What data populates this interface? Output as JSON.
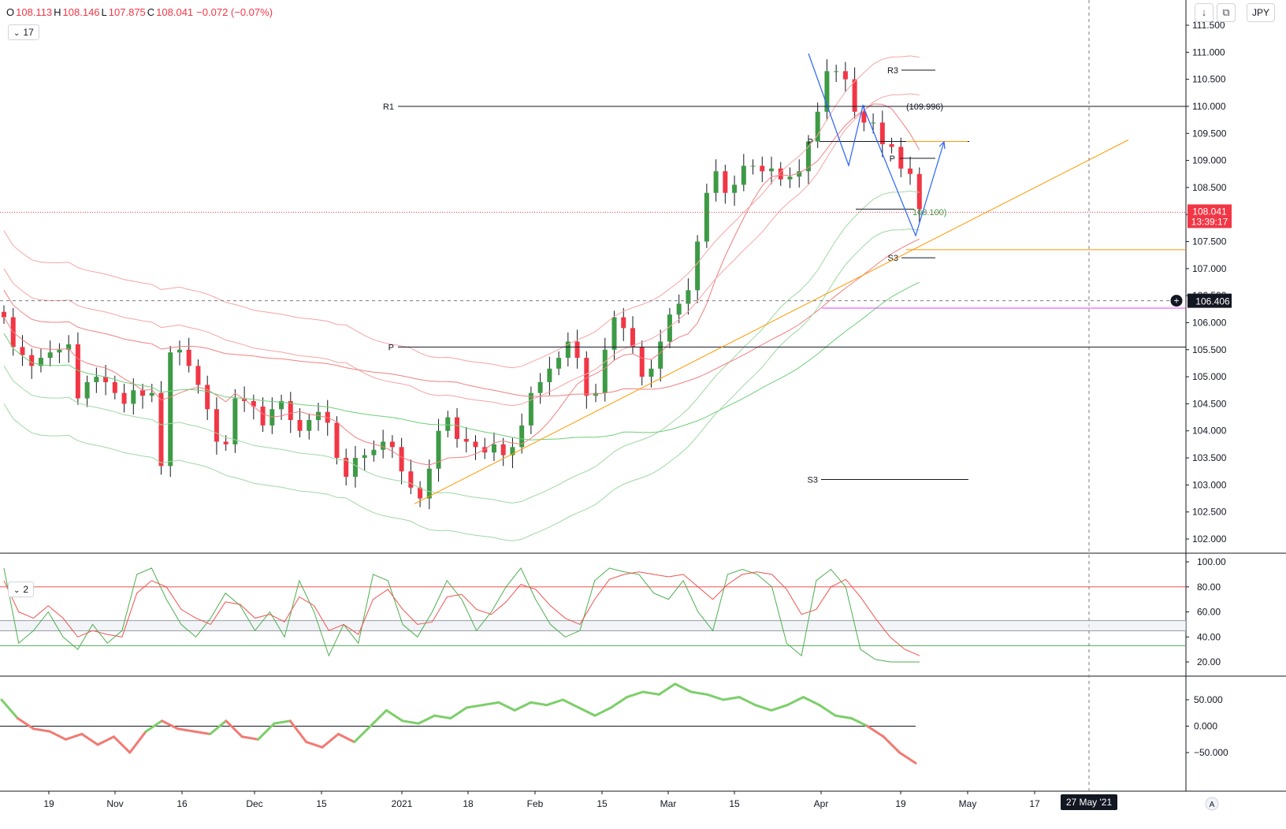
{
  "header": {
    "ohlc": [
      {
        "label": "O",
        "value": "108.113"
      },
      {
        "label": "H",
        "value": "108.146"
      },
      {
        "label": "L",
        "value": "107.875"
      },
      {
        "label": "C",
        "value": "108.041"
      },
      {
        "label": "",
        "value": "−0.072 (−0.07%)"
      }
    ],
    "pane1_chip": "17",
    "pane2_chip": "2",
    "currency": "JPY",
    "icon_download": "arrow-down-icon",
    "icon_fullscreen": "fullscreen-icon"
  },
  "colors": {
    "up": "#3d9a45",
    "down": "#f23645",
    "bb_red": "#f4a5a5",
    "bb_green": "#9fd8a3",
    "sma_red": "#f08080",
    "sma_green": "#6fcf7a",
    "trend": "#ff9800",
    "pattern": "#2962ff",
    "magenta": "#e040fb",
    "osc_green": "#4caf50",
    "osc_red": "#ef5350",
    "mom_green": "#7ccf6a",
    "mom_red": "#f27a72"
  },
  "price_axis": {
    "ticks": [
      "111.500",
      "111.000",
      "110.500",
      "110.000",
      "109.500",
      "109.000",
      "108.500",
      "108.000",
      "107.500",
      "107.000",
      "106.500",
      "106.000",
      "105.500",
      "105.000",
      "104.500",
      "104.000",
      "103.500",
      "103.000",
      "102.500",
      "102.000"
    ],
    "current_price": "108.041",
    "countdown": "13:39:17",
    "crosshair_price": "106.406"
  },
  "osc_axis": {
    "ticks": [
      "100.00",
      "80.00",
      "60.00",
      "40.00",
      "20.00"
    ]
  },
  "mom_axis": {
    "ticks": [
      "50.000",
      "0.000",
      "−50.000"
    ]
  },
  "time_axis": {
    "labels": [
      "19",
      "Nov",
      "16",
      "Dec",
      "15",
      "2021",
      "18",
      "Feb",
      "15",
      "Mar",
      "15",
      "Apr",
      "19",
      "May",
      "17"
    ],
    "crosshair_date": "27 May '21",
    "scale_button": "A"
  },
  "annotations": {
    "r1": "R1",
    "p_left": "P",
    "r3": "R3",
    "level_109996": "(109.996)",
    "p_right": "P",
    "p_small": "P",
    "level_108100": "108.100)",
    "s3_right": "S3",
    "s3_mid": "S3"
  },
  "chart_data": [
    {
      "type": "candlestick",
      "title": "",
      "ylim": [
        101.8,
        111.75
      ],
      "series": [
        {
          "name": "",
          "values": [
            106.1,
            105.55,
            105.4,
            105.2,
            105.35,
            105.45,
            105.5,
            105.6,
            104.6,
            104.9,
            105.0,
            104.9,
            104.7,
            104.5,
            104.75,
            104.65,
            104.7,
            103.35,
            105.45,
            105.5,
            105.2,
            104.85,
            104.4,
            103.8,
            103.75,
            104.6,
            104.55,
            104.45,
            104.1,
            104.4,
            104.55,
            104.2,
            104.0,
            104.2,
            104.35,
            104.15,
            103.5,
            103.15,
            103.5,
            103.55,
            103.65,
            103.8,
            103.7,
            103.25,
            102.95,
            102.75,
            103.3,
            104.0,
            104.25,
            103.85,
            103.8,
            103.7,
            103.6,
            103.75,
            103.55,
            103.7,
            104.1,
            104.7,
            104.9,
            105.15,
            105.35,
            105.65,
            105.35,
            104.65,
            104.7,
            105.5,
            106.1,
            105.9,
            105.55,
            105.0,
            105.15,
            105.65,
            106.15,
            106.35,
            106.6,
            107.5,
            108.4,
            108.8,
            108.4,
            108.55,
            108.9,
            108.9,
            108.8,
            108.85,
            108.65,
            108.7,
            108.8,
            109.35,
            109.9,
            110.65,
            110.65,
            110.5,
            109.9,
            109.7,
            109.7,
            109.3,
            109.25,
            108.85,
            108.75,
            108.1
          ],
          "ohlc_note": "daily closes read from candle bodies (USDJPY-style, Oct 2020 – Apr 2021)"
        }
      ],
      "levels": [
        {
          "name": "R1",
          "value": 110.0
        },
        {
          "name": "P",
          "value": 105.55
        },
        {
          "name": "R3",
          "value": 110.67
        },
        {
          "name": "P",
          "value": 109.35
        },
        {
          "name": "P",
          "value": 109.04
        },
        {
          "name": "S3",
          "value": 107.2
        },
        {
          "name": "S3",
          "value": 103.1
        },
        {
          "name": "",
          "value": 106.27
        },
        {
          "name": "",
          "value": 107.35
        },
        {
          "name": "",
          "value": 106.406
        }
      ]
    },
    {
      "type": "line",
      "title": "",
      "ylim": [
        10,
        100
      ],
      "hlines": [
        80,
        53,
        45,
        33
      ],
      "series": [
        {
          "name": "",
          "values": [
            95,
            35,
            45,
            60,
            40,
            30,
            50,
            35,
            45,
            90,
            95,
            70,
            50,
            40,
            55,
            75,
            65,
            45,
            60,
            40,
            85,
            60,
            25,
            50,
            35,
            90,
            85,
            50,
            40,
            60,
            85,
            70,
            45,
            60,
            80,
            95,
            70,
            50,
            40,
            45,
            85,
            95,
            92,
            90,
            75,
            70,
            85,
            60,
            45,
            90,
            94,
            90,
            80,
            35,
            25,
            85,
            94,
            80,
            30,
            22,
            20,
            20,
            20
          ]
        },
        {
          "name": "",
          "values": [
            85,
            60,
            55,
            65,
            55,
            40,
            45,
            42,
            40,
            75,
            85,
            80,
            62,
            55,
            50,
            68,
            66,
            55,
            58,
            52,
            72,
            65,
            45,
            50,
            42,
            70,
            78,
            62,
            50,
            52,
            72,
            74,
            62,
            58,
            68,
            82,
            78,
            65,
            55,
            50,
            70,
            86,
            90,
            92,
            90,
            88,
            90,
            80,
            70,
            82,
            90,
            92,
            90,
            78,
            58,
            62,
            80,
            86,
            72,
            55,
            40,
            30,
            25
          ]
        }
      ]
    },
    {
      "type": "line",
      "title": "",
      "ylim": [
        -70,
        70
      ],
      "series": [
        {
          "name": "",
          "values": [
            50,
            15,
            -5,
            -10,
            -25,
            -15,
            -35,
            -20,
            -50,
            -10,
            10,
            -5,
            -10,
            -15,
            10,
            -20,
            -25,
            5,
            10,
            -30,
            -40,
            -15,
            -30,
            0,
            30,
            10,
            5,
            20,
            15,
            35,
            40,
            45,
            30,
            45,
            40,
            50,
            35,
            20,
            35,
            55,
            65,
            60,
            80,
            65,
            60,
            50,
            55,
            40,
            30,
            40,
            55,
            40,
            20,
            15,
            0,
            -20,
            -50,
            -70
          ]
        }
      ]
    }
  ]
}
